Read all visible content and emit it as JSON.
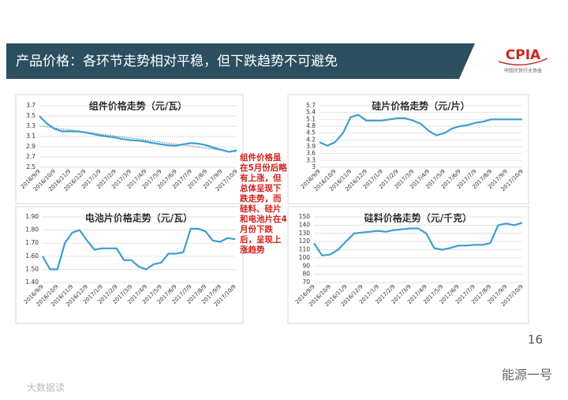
{
  "header": {
    "title": "产品价格：各环节走势相对平稳，但下跌趋势不可避免",
    "logo": "CPIA",
    "logo_subtitle": "中国光伏行业协会"
  },
  "annotation": "组件价格虽在5月份后略有上涨，但总体呈现下跌走势，而硅料、硅片和电池片在4月份下跌后，呈现上涨趋势",
  "page_number": "16",
  "watermarks": [
    "能源一号",
    "大数据读"
  ],
  "chart_data": [
    {
      "type": "line",
      "title": "组件价格走势（元/瓦）",
      "color": "#3b9fd1",
      "grid": true,
      "trendline": true,
      "categories": [
        "2016/9/9",
        null,
        "2016/10/9",
        null,
        "2016/11/9",
        null,
        "2016/12/9",
        null,
        "2017/1/9",
        null,
        "2017/2/9",
        null,
        "2017/3/9",
        null,
        "2017/4/9",
        null,
        "2017/5/9",
        null,
        "2017/6/9",
        null,
        "2017/7/9",
        null,
        "2017/8/9",
        null,
        "2017/9/9",
        null,
        "2017/10/9"
      ],
      "values": [
        3.5,
        3.35,
        3.25,
        3.2,
        3.2,
        3.2,
        3.18,
        3.15,
        3.12,
        3.1,
        3.08,
        3.05,
        3.03,
        3.02,
        3.0,
        2.97,
        2.95,
        2.93,
        2.92,
        2.95,
        2.97,
        2.96,
        2.93,
        2.88,
        2.84,
        2.8,
        2.83
      ],
      "ylim": [
        2.5,
        3.7
      ],
      "yticks": [
        2.5,
        2.7,
        2.9,
        3.1,
        3.3,
        3.5,
        3.7
      ]
    },
    {
      "type": "line",
      "title": "硅片价格走势（元/片）",
      "color": "#3b9fd1",
      "grid": true,
      "categories": [
        "2016/9/9",
        null,
        "2016/10/9",
        null,
        "2016/11/9",
        null,
        "2016/12/9",
        null,
        "2017/1/9",
        null,
        "2017/2/9",
        null,
        "2017/3/9",
        null,
        "2017/4/9",
        null,
        "2017/5/9",
        null,
        "2017/6/9",
        null,
        "2017/7/9",
        null,
        "2017/8/9",
        null,
        "2017/9/9",
        null,
        "2017/10/9"
      ],
      "values": [
        4.1,
        3.95,
        4.1,
        4.5,
        5.2,
        5.3,
        5.05,
        5.05,
        5.05,
        5.1,
        5.15,
        5.15,
        5.05,
        4.9,
        4.6,
        4.4,
        4.5,
        4.7,
        4.8,
        4.85,
        4.95,
        5.0,
        5.1,
        5.1,
        5.1,
        5.1,
        5.1
      ],
      "ylim": [
        3,
        5.7
      ],
      "yticks": [
        3,
        3.3,
        3.6,
        3.9,
        4.2,
        4.5,
        4.8,
        5.1,
        5.4,
        5.7
      ]
    },
    {
      "type": "line",
      "title": "电池片价格走势（元/瓦）",
      "color": "#3b9fd1",
      "grid": true,
      "categories": [
        "2016/9/9",
        null,
        "2016/10/9",
        null,
        "2016/11/9",
        null,
        "2016/12/9",
        null,
        "2017/1/9",
        null,
        "2017/2/9",
        null,
        "2017/3/9",
        null,
        "2017/4/9",
        null,
        "2017/5/9",
        null,
        "2017/6/9",
        null,
        "2017/7/9",
        null,
        "2017/8/9",
        null,
        "2017/9/9",
        null,
        "2017/10/9"
      ],
      "values": [
        1.6,
        1.5,
        1.5,
        1.7,
        1.78,
        1.8,
        1.72,
        1.65,
        1.66,
        1.66,
        1.66,
        1.57,
        1.57,
        1.52,
        1.5,
        1.54,
        1.55,
        1.62,
        1.62,
        1.63,
        1.81,
        1.81,
        1.79,
        1.72,
        1.71,
        1.74,
        1.73
      ],
      "ylim": [
        1.4,
        1.9
      ],
      "yticks": [
        {
          "value": 1.4,
          "label": "1.40"
        },
        {
          "value": 1.5,
          "label": "1.50"
        },
        {
          "value": 1.6,
          "label": "1.60"
        },
        {
          "value": 1.7,
          "label": "1.70"
        },
        {
          "value": 1.8,
          "label": "1.80"
        },
        {
          "value": 1.9,
          "label": "1.90"
        }
      ]
    },
    {
      "type": "line",
      "title": "硅料价格走势（元/千克）",
      "color": "#3b9fd1",
      "grid": true,
      "categories": [
        "2016/9/9",
        null,
        "2016/10/9",
        null,
        "2016/11/9",
        null,
        "2016/12/9",
        null,
        "2017/1/9",
        null,
        "2017/2/9",
        null,
        "2017/3/9",
        null,
        "2017/4/9",
        null,
        "2017/5/9",
        null,
        "2017/6/9",
        null,
        "2017/7/9",
        null,
        "2017/8/9",
        null,
        "2017/9/9",
        null,
        "2017/10/9"
      ],
      "values": [
        118,
        103,
        104,
        110,
        120,
        130,
        131,
        132,
        133,
        132,
        134,
        135,
        136,
        136,
        130,
        112,
        110,
        112,
        115,
        115,
        116,
        116,
        118,
        140,
        142,
        140,
        143
      ],
      "ylim": [
        70,
        150
      ],
      "yticks": [
        70,
        80,
        90,
        100,
        110,
        120,
        130,
        140,
        150
      ]
    }
  ]
}
